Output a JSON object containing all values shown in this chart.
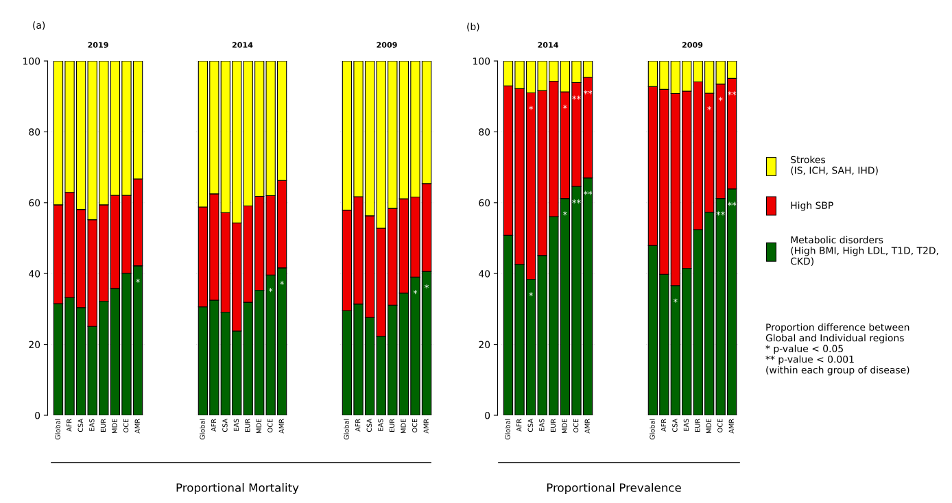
{
  "chart_data": [
    {
      "type": "bar",
      "stacked": true,
      "title": "2019",
      "categories": [
        "Global",
        "AFR",
        "CSA",
        "EAS",
        "EUR",
        "MDE",
        "OCE",
        "AMR"
      ],
      "ylim": [
        0,
        100
      ],
      "yticks": [
        0,
        20,
        40,
        60,
        80,
        100
      ],
      "grid": "y",
      "series": [
        {
          "color": "#006400",
          "values": [
            31.5,
            33.2,
            30.4,
            25.1,
            32.2,
            35.8,
            40.1,
            42.2
          ],
          "value_labels": [
            null,
            null,
            null,
            null,
            null,
            null,
            null,
            "*"
          ]
        },
        {
          "color": "#ee0000",
          "values": [
            27.9,
            29.7,
            27.7,
            30.1,
            27.2,
            26.3,
            22.0,
            24.5
          ]
        },
        {
          "color": "#ffff00",
          "values": [
            40.6,
            37.1,
            41.9,
            44.8,
            40.6,
            37.9,
            37.9,
            33.3
          ]
        }
      ],
      "annotations": [
        "(a)"
      ]
    },
    {
      "type": "bar",
      "stacked": true,
      "title": "2014",
      "categories": [
        "Global",
        "AFR",
        "CSA",
        "EAS",
        "EUR",
        "MDE",
        "OCE",
        "AMR"
      ],
      "ylim": [
        0,
        100
      ],
      "yticks": [
        0,
        20,
        40,
        60,
        80,
        100
      ],
      "grid": "y",
      "tick_labels": "x",
      "series": [
        {
          "color": "#006400",
          "values": [
            30.6,
            32.5,
            29.1,
            23.8,
            31.9,
            35.3,
            39.6,
            41.6
          ],
          "value_labels": [
            null,
            null,
            null,
            null,
            null,
            null,
            "*",
            "*"
          ]
        },
        {
          "color": "#ee0000",
          "values": [
            28.2,
            30.0,
            28.1,
            30.5,
            27.2,
            26.5,
            22.4,
            24.7
          ]
        },
        {
          "color": "#ffff00",
          "values": [
            41.2,
            37.5,
            42.8,
            45.7,
            40.9,
            38.2,
            38.0,
            33.7
          ]
        }
      ],
      "annotations": [
        "Proportional Mortality"
      ]
    },
    {
      "type": "bar",
      "stacked": true,
      "title": "2009",
      "categories": [
        "Global",
        "AFR",
        "CSA",
        "EAS",
        "EUR",
        "MDE",
        "OCE",
        "AMR"
      ],
      "ylim": [
        0,
        100
      ],
      "yticks": [
        0,
        20,
        40,
        60,
        80,
        100
      ],
      "grid": "y",
      "tick_labels": "x",
      "series": [
        {
          "color": "#006400",
          "values": [
            29.5,
            31.4,
            27.6,
            22.3,
            31.1,
            34.5,
            39.0,
            40.6
          ],
          "value_labels": [
            null,
            null,
            null,
            null,
            null,
            null,
            "*",
            "*"
          ]
        },
        {
          "color": "#ee0000",
          "values": [
            28.4,
            30.3,
            28.7,
            30.5,
            27.3,
            26.6,
            22.6,
            24.8
          ]
        },
        {
          "color": "#ffff00",
          "values": [
            42.1,
            38.3,
            43.7,
            47.2,
            41.6,
            38.9,
            38.4,
            34.6
          ]
        }
      ]
    },
    {
      "type": "bar",
      "stacked": true,
      "title": "2014",
      "categories": [
        "Global",
        "AFR",
        "CSA",
        "EAS",
        "EUR",
        "MDE",
        "OCE",
        "AMR"
      ],
      "ylim": [
        0,
        100
      ],
      "yticks": [
        0,
        20,
        40,
        60,
        80,
        100
      ],
      "grid": "y",
      "series": [
        {
          "color": "#006400",
          "values": [
            50.8,
            42.6,
            38.4,
            45.1,
            56.1,
            61.2,
            64.6,
            67.0
          ],
          "value_labels": [
            null,
            null,
            "*",
            null,
            null,
            "*",
            "**",
            "**"
          ]
        },
        {
          "color": "#ee0000",
          "values": [
            42.2,
            49.6,
            52.6,
            46.5,
            38.2,
            30.1,
            29.3,
            28.4
          ],
          "value_labels": [
            null,
            null,
            "*",
            null,
            null,
            "*",
            "**",
            "**"
          ]
        },
        {
          "color": "#ffff00",
          "values": [
            7.0,
            7.8,
            9.0,
            8.4,
            5.7,
            8.7,
            6.1,
            4.6
          ]
        }
      ],
      "annotations": [
        "(b)"
      ]
    },
    {
      "type": "bar",
      "stacked": true,
      "title": "2009",
      "categories": [
        "Global",
        "AFR",
        "CSA",
        "EAS",
        "EUR",
        "MDE",
        "OCE",
        "AMR"
      ],
      "ylim": [
        0,
        100
      ],
      "yticks": [
        0,
        20,
        40,
        60,
        80,
        100
      ],
      "grid": "y",
      "tick_labels": "x",
      "legend": "right",
      "series": [
        {
          "name": "Metabolic disorders\n(High BMI, High LDL, T1D, T2D,\nCKD)",
          "color": "#006400",
          "values": [
            47.9,
            39.8,
            36.6,
            41.5,
            52.4,
            57.3,
            61.2,
            63.9
          ],
          "value_labels": [
            null,
            null,
            "*",
            null,
            null,
            null,
            "**",
            "**"
          ]
        },
        {
          "name": "High SBP",
          "color": "#ee0000",
          "values": [
            44.9,
            52.2,
            54.2,
            50.0,
            41.7,
            33.6,
            32.3,
            31.2
          ],
          "value_labels": [
            null,
            null,
            null,
            null,
            null,
            "*",
            "*",
            "**"
          ]
        },
        {
          "name": "Strokes\n(IS, ICH, SAH, IHD)",
          "color": "#ffff00",
          "values": [
            7.2,
            8.0,
            9.2,
            8.5,
            5.9,
            9.1,
            6.5,
            4.9
          ]
        }
      ],
      "annotations": [
        "Proportional Prevalence",
        "Proportion difference between\nGlobal and Individual regions\n* p-value < 0.05\n** p-value < 0.001\n(within each group of disease)"
      ]
    }
  ]
}
